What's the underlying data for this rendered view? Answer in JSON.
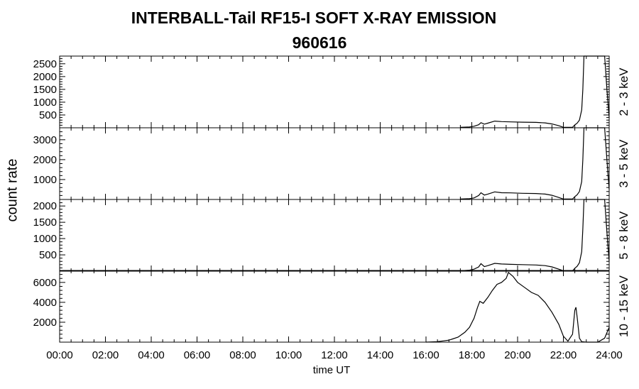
{
  "title": "INTERBALL-Tail RF15-I SOFT X-RAY EMISSION",
  "subtitle": "960616",
  "ylabel": "count rate",
  "xlabel": "time UT",
  "chart_data": {
    "type": "line",
    "title": "INTERBALL-Tail RF15-I SOFT X-RAY EMISSION",
    "subtitle": "960616",
    "xlabel": "time UT",
    "ylabel": "count rate",
    "x_unit": "hours UT",
    "xlim": [
      0,
      24
    ],
    "x_ticks": [
      0,
      2,
      4,
      6,
      8,
      10,
      12,
      14,
      16,
      18,
      20,
      22,
      24
    ],
    "x_tick_labels": [
      "00:00",
      "02:00",
      "04:00",
      "06:00",
      "08:00",
      "10:00",
      "12:00",
      "14:00",
      "16:00",
      "18:00",
      "20:00",
      "22:00",
      "24:00"
    ],
    "grid": false,
    "panels": [
      {
        "name": "2 - 3 keV",
        "ylim": [
          0,
          2800
        ],
        "y_ticks": [
          500,
          1000,
          1500,
          2000,
          2500
        ],
        "x": [
          17.5,
          17.9,
          18.1,
          18.3,
          18.4,
          18.55,
          18.7,
          19.0,
          19.3,
          19.7,
          20.2,
          20.8,
          21.2,
          21.5,
          21.8,
          22.0,
          22.4,
          22.5,
          22.6,
          22.7,
          22.8,
          22.85,
          22.9,
          22.95,
          23.2,
          23.5,
          23.8,
          23.9,
          24.0
        ],
        "values": [
          20,
          30,
          60,
          120,
          200,
          140,
          180,
          260,
          240,
          230,
          220,
          210,
          190,
          150,
          80,
          20,
          20,
          110,
          180,
          300,
          700,
          1500,
          2800,
          2800,
          2800,
          2800,
          2800,
          1500,
          400
        ]
      },
      {
        "name": "3 - 5 keV",
        "ylim": [
          0,
          3600
        ],
        "y_ticks": [
          1000,
          2000,
          3000
        ],
        "x": [
          17.5,
          17.9,
          18.1,
          18.3,
          18.4,
          18.55,
          18.7,
          19.0,
          19.3,
          19.7,
          20.2,
          20.8,
          21.2,
          21.5,
          21.8,
          22.0,
          22.4,
          22.5,
          22.6,
          22.7,
          22.8,
          22.85,
          22.9,
          22.95,
          23.2,
          23.5,
          23.8,
          23.9,
          24.0
        ],
        "values": [
          20,
          40,
          80,
          200,
          340,
          220,
          270,
          380,
          340,
          330,
          310,
          300,
          270,
          210,
          100,
          20,
          20,
          140,
          240,
          400,
          900,
          2000,
          3600,
          3600,
          3600,
          3600,
          3600,
          2000,
          500
        ]
      },
      {
        "name": "5 - 8 keV",
        "ylim": [
          0,
          2200
        ],
        "y_ticks": [
          500,
          1000,
          1500,
          2000
        ],
        "x": [
          17.5,
          17.9,
          18.1,
          18.3,
          18.4,
          18.55,
          18.7,
          19.0,
          19.3,
          19.7,
          20.2,
          20.8,
          21.2,
          21.5,
          21.8,
          22.0,
          22.4,
          22.5,
          22.6,
          22.7,
          22.8,
          22.85,
          22.9,
          22.95,
          23.2,
          23.5,
          23.8,
          23.9,
          24.0
        ],
        "values": [
          10,
          30,
          60,
          130,
          230,
          140,
          170,
          240,
          220,
          210,
          200,
          190,
          170,
          130,
          60,
          10,
          10,
          90,
          150,
          260,
          600,
          1300,
          2200,
          2200,
          2200,
          2200,
          2200,
          1200,
          300
        ]
      },
      {
        "name": "10 - 15 keV",
        "ylim": [
          0,
          7200
        ],
        "y_ticks": [
          2000,
          4000,
          6000
        ],
        "x": [
          16.0,
          16.5,
          17.0,
          17.4,
          17.7,
          17.9,
          18.1,
          18.25,
          18.35,
          18.5,
          18.7,
          18.9,
          19.1,
          19.3,
          19.5,
          19.6,
          19.8,
          20.0,
          20.3,
          20.6,
          20.9,
          21.2,
          21.5,
          21.8,
          22.0,
          22.2,
          22.4,
          22.5,
          22.55,
          22.6,
          22.7,
          22.8,
          23.0,
          23.5,
          23.8,
          24.0
        ],
        "values": [
          0,
          50,
          200,
          500,
          1000,
          1500,
          2400,
          3500,
          4100,
          3900,
          4500,
          5200,
          5800,
          6000,
          6400,
          7000,
          6600,
          6000,
          5500,
          5000,
          4700,
          4000,
          3000,
          1800,
          600,
          100,
          800,
          3200,
          3500,
          2500,
          400,
          50,
          0,
          0,
          400,
          1500
        ]
      }
    ]
  }
}
